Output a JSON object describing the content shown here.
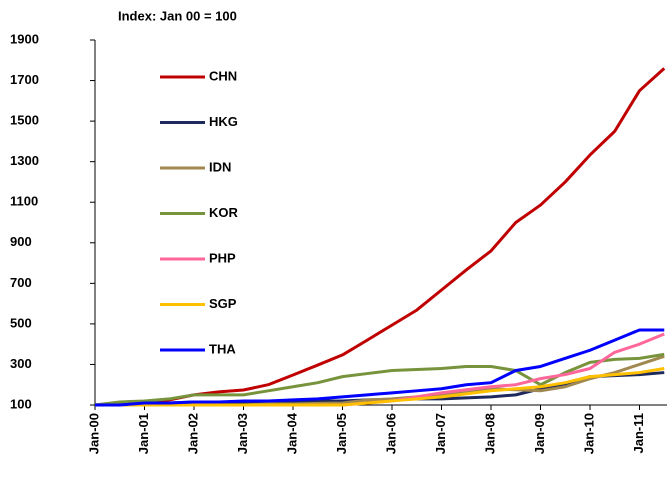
{
  "chart_data": {
    "type": "line",
    "subtitle": "Index: Jan 00 = 100",
    "categories": [
      "Jan-00",
      null,
      "Jan-01",
      null,
      "Jan-02",
      null,
      "Jan-03",
      null,
      "Jan-04",
      null,
      "Jan-05",
      null,
      "Jan-06",
      null,
      "Jan-07",
      null,
      "Jan-08",
      null,
      "Jan-09",
      null,
      "Jan-10",
      null,
      "Jan-11",
      null
    ],
    "ylim": [
      100,
      1900
    ],
    "yticks": [
      100,
      300,
      500,
      700,
      900,
      1100,
      1300,
      1500,
      1700,
      1900
    ],
    "grid": false,
    "legend": "upper left",
    "series": [
      {
        "name": "CHN",
        "color": "#c00000",
        "values": [
          100,
          105,
          115,
          125,
          150,
          165,
          174,
          200,
          248,
          297,
          347,
          420,
          494,
          568,
          667,
          766,
          860,
          1000,
          1086,
          1200,
          1333,
          1450,
          1650,
          1760
        ]
      },
      {
        "name": "HKG",
        "color": "#1f2a5c",
        "values": [
          100,
          105,
          110,
          110,
          115,
          115,
          115,
          115,
          120,
          120,
          120,
          125,
          125,
          130,
          130,
          135,
          140,
          150,
          180,
          200,
          240,
          245,
          250,
          260
        ]
      },
      {
        "name": "IDN",
        "color": "#a08850",
        "values": [
          100,
          100,
          100,
          100,
          100,
          100,
          100,
          105,
          105,
          108,
          110,
          125,
          130,
          140,
          150,
          165,
          180,
          175,
          170,
          190,
          230,
          260,
          300,
          340
        ]
      },
      {
        "name": "KOR",
        "color": "#77933c",
        "values": [
          100,
          115,
          120,
          130,
          150,
          150,
          150,
          170,
          190,
          210,
          240,
          255,
          270,
          275,
          280,
          290,
          290,
          270,
          200,
          260,
          310,
          325,
          330,
          350
        ]
      },
      {
        "name": "PHP",
        "color": "#ff6699",
        "values": [
          100,
          100,
          100,
          100,
          100,
          100,
          100,
          100,
          100,
          100,
          100,
          110,
          120,
          140,
          160,
          175,
          190,
          200,
          230,
          250,
          280,
          360,
          400,
          450
        ]
      },
      {
        "name": "SGP",
        "color": "#ffc000",
        "values": [
          100,
          100,
          100,
          100,
          100,
          100,
          100,
          100,
          100,
          100,
          100,
          110,
          120,
          130,
          140,
          155,
          170,
          180,
          190,
          210,
          240,
          250,
          260,
          280
        ]
      },
      {
        "name": "THA",
        "color": "#0000ff",
        "values": [
          100,
          100,
          110,
          110,
          115,
          115,
          120,
          120,
          125,
          130,
          140,
          150,
          160,
          170,
          180,
          200,
          210,
          270,
          290,
          330,
          370,
          420,
          470,
          470
        ]
      }
    ]
  }
}
